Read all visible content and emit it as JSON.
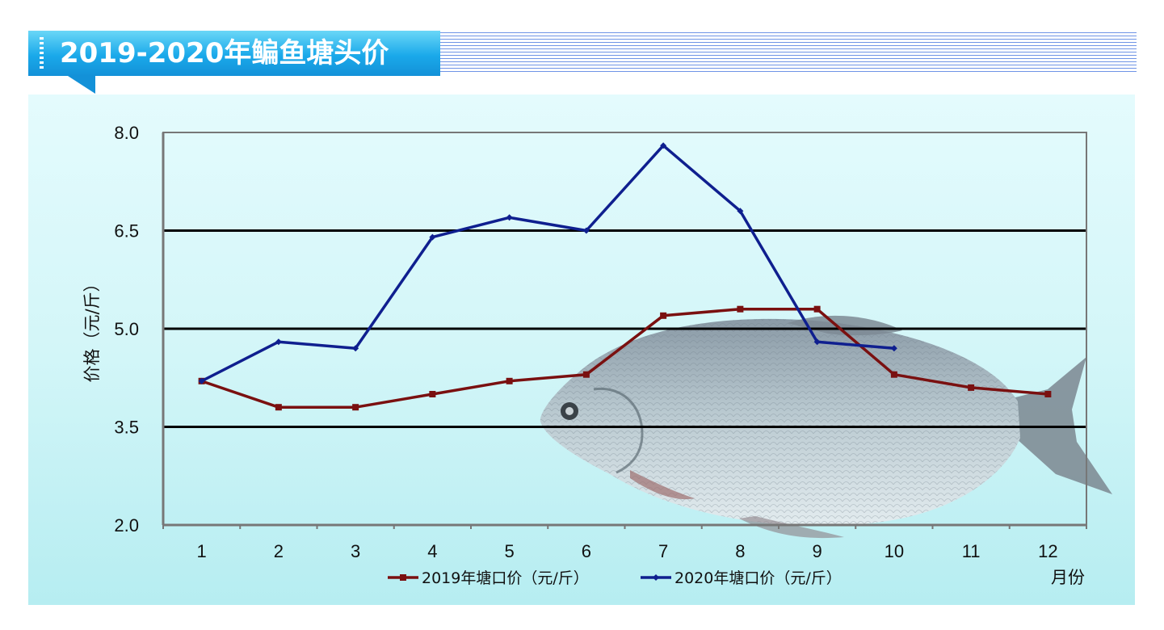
{
  "title": "2019-2020年鳊鱼塘头价",
  "chart_data": {
    "type": "line",
    "title": "2019-2020年鳊鱼塘头价",
    "xlabel": "月份",
    "ylabel": "价格（元/斤）",
    "categories": [
      "1",
      "2",
      "3",
      "4",
      "5",
      "6",
      "7",
      "8",
      "9",
      "10",
      "11",
      "12"
    ],
    "y_ticks": [
      "2.0",
      "3.5",
      "5.0",
      "6.5",
      "8.0"
    ],
    "ylim": [
      2.0,
      8.0
    ],
    "grid": "horizontal",
    "legend_position": "bottom",
    "series": [
      {
        "name": "2019年塘口价（元/斤）",
        "color": "#7a1010",
        "marker": "square",
        "values": [
          4.2,
          3.8,
          3.8,
          4.0,
          4.2,
          4.3,
          5.2,
          5.3,
          5.3,
          4.3,
          4.1,
          4.0
        ]
      },
      {
        "name": "2020年塘口价（元/斤）",
        "color": "#0f1f8f",
        "marker": "diamond",
        "values": [
          4.2,
          4.8,
          4.7,
          6.4,
          6.7,
          6.5,
          7.8,
          6.8,
          4.8,
          4.7,
          null,
          null
        ]
      }
    ]
  },
  "decoration": {
    "background_image": "bream-fish",
    "banner_color": "#1aa9ea"
  }
}
